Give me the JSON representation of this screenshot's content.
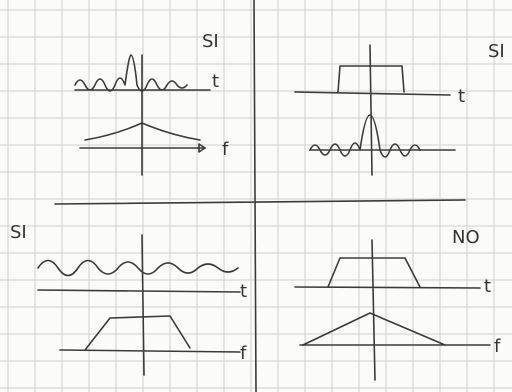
{
  "panels": [
    {
      "verdict": "SI",
      "axis_labels": [
        "t",
        "f"
      ]
    },
    {
      "verdict": "SI",
      "axis_labels": [
        "t"
      ]
    },
    {
      "verdict": "SI",
      "axis_labels": [
        "t",
        "f"
      ]
    },
    {
      "verdict": "NO",
      "axis_labels": [
        "t",
        "f"
      ]
    }
  ]
}
